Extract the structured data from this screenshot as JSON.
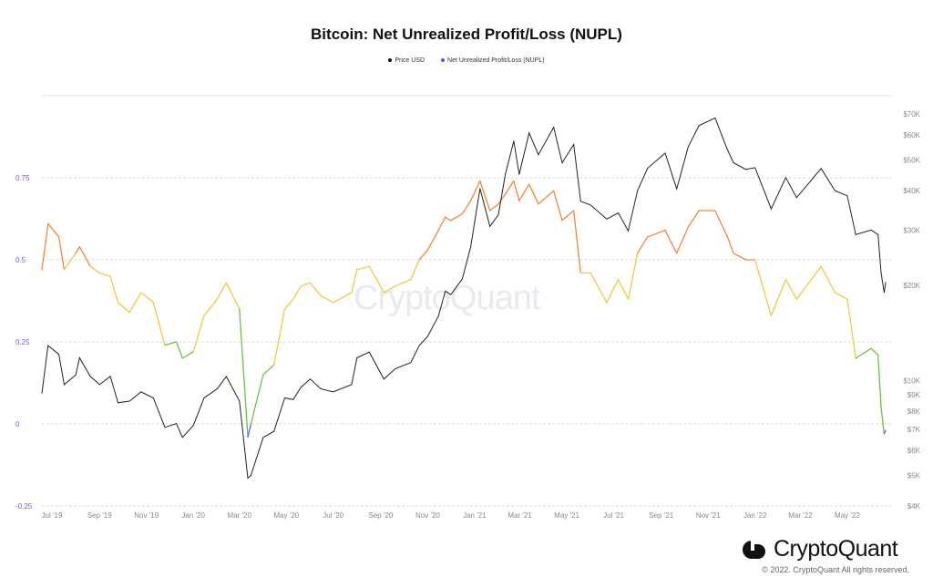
{
  "chart_data": {
    "type": "line",
    "title": "Bitcoin: Net Unrealized Profit/Loss (NUPL)",
    "legend": [
      "Price USD",
      "Net Unrealized Profit/Loss (NUPL)"
    ],
    "legend_placement": "top-center",
    "grid": true,
    "left_axis": {
      "ylim": [
        -0.25,
        1.0
      ],
      "ticks": [
        -0.25,
        0,
        0.25,
        0.5,
        0.75
      ],
      "tick_labels": [
        "-0.25",
        "0",
        "0.25",
        "0.5",
        "0.75"
      ]
    },
    "right_axis": {
      "scale": "log",
      "ylim": [
        4000,
        70000
      ],
      "ticks": [
        4000,
        5000,
        6000,
        7000,
        8000,
        9000,
        10000,
        20000,
        30000,
        40000,
        50000,
        60000,
        70000
      ],
      "tick_labels": [
        "$4K",
        "$5K",
        "$6K",
        "$7K",
        "$8K",
        "$9K",
        "$10K",
        "$20K",
        "$30K",
        "$40K",
        "$50K",
        "$60K",
        "$70K"
      ]
    },
    "x_ticks": [
      "2019-07-01",
      "2019-09-01",
      "2019-11-01",
      "2020-01-01",
      "2020-03-01",
      "2020-05-01",
      "2020-07-01",
      "2020-09-01",
      "2020-11-01",
      "2021-01-01",
      "2021-03-01",
      "2021-05-01",
      "2021-07-01",
      "2021-09-01",
      "2021-11-01",
      "2022-01-01",
      "2022-03-01",
      "2022-05-01"
    ],
    "x_tick_labels": [
      "Jul '19",
      "Sep '19",
      "Nov '19",
      "Jan '20",
      "Mar '20",
      "May '20",
      "Jul '20",
      "Sep '20",
      "Nov '20",
      "Jan '21",
      "Mar '21",
      "May '21",
      "Jul '21",
      "Sep '21",
      "Nov '21",
      "Jan '22",
      "Mar '22",
      "May '22"
    ],
    "xlim": [
      "2019-06-18",
      "2022-06-27"
    ],
    "nupl_colors": {
      "capitulation": "#4a6cf0",
      "hope_fear": "#6cbf45",
      "optimism_anxiety": "#f2c846",
      "belief_denial": "#f0883c",
      "price": "#222222"
    },
    "dates": [
      "2019-06-18",
      "2019-06-26",
      "2019-07-10",
      "2019-07-17",
      "2019-08-01",
      "2019-08-06",
      "2019-08-20",
      "2019-09-01",
      "2019-09-15",
      "2019-09-25",
      "2019-10-10",
      "2019-10-25",
      "2019-11-10",
      "2019-11-25",
      "2019-12-10",
      "2019-12-18",
      "2020-01-01",
      "2020-01-15",
      "2020-02-01",
      "2020-02-13",
      "2020-03-01",
      "2020-03-12",
      "2020-03-16",
      "2020-04-01",
      "2020-04-15",
      "2020-04-29",
      "2020-05-10",
      "2020-05-20",
      "2020-06-01",
      "2020-06-15",
      "2020-07-01",
      "2020-07-25",
      "2020-08-01",
      "2020-08-17",
      "2020-09-05",
      "2020-09-20",
      "2020-10-10",
      "2020-10-21",
      "2020-11-01",
      "2020-11-15",
      "2020-11-24",
      "2020-12-01",
      "2020-12-16",
      "2020-12-27",
      "2021-01-08",
      "2021-01-21",
      "2021-02-01",
      "2021-02-10",
      "2021-02-21",
      "2021-02-28",
      "2021-03-13",
      "2021-03-25",
      "2021-04-14",
      "2021-04-25",
      "2021-05-10",
      "2021-05-19",
      "2021-06-01",
      "2021-06-22",
      "2021-07-07",
      "2021-07-20",
      "2021-08-01",
      "2021-08-14",
      "2021-09-06",
      "2021-09-21",
      "2021-10-06",
      "2021-10-20",
      "2021-11-10",
      "2021-11-26",
      "2021-12-04",
      "2021-12-20",
      "2022-01-01",
      "2022-01-22",
      "2022-02-10",
      "2022-02-24",
      "2022-03-28",
      "2022-04-15",
      "2022-05-01",
      "2022-05-12",
      "2022-06-01",
      "2022-06-10",
      "2022-06-14",
      "2022-06-18",
      "2022-06-20"
    ],
    "series": [
      {
        "name": "Price USD",
        "axis": "right",
        "values": [
          9100,
          12900,
          12100,
          9700,
          10400,
          11800,
          10300,
          9700,
          10300,
          8500,
          8600,
          9200,
          8800,
          7100,
          7300,
          6600,
          7200,
          8800,
          9400,
          10300,
          8600,
          4900,
          5000,
          6600,
          6900,
          8800,
          8700,
          9500,
          10100,
          9400,
          9200,
          9700,
          11800,
          12300,
          10100,
          10900,
          11400,
          12900,
          13800,
          16000,
          19200,
          18700,
          21000,
          26500,
          40600,
          30800,
          33500,
          45000,
          57500,
          45000,
          61000,
          52000,
          63500,
          49000,
          56000,
          37000,
          36000,
          32500,
          34000,
          29800,
          40000,
          47000,
          52600,
          40500,
          55000,
          64300,
          68000,
          54000,
          49000,
          46700,
          47300,
          35000,
          44000,
          38000,
          47000,
          40000,
          38500,
          29000,
          30000,
          29000,
          22000,
          19000,
          20500
        ]
      },
      {
        "name": "Net Unrealized Profit/Loss (NUPL)",
        "axis": "left",
        "values": [
          0.47,
          0.61,
          0.57,
          0.47,
          0.52,
          0.54,
          0.48,
          0.46,
          0.45,
          0.37,
          0.34,
          0.4,
          0.37,
          0.24,
          0.25,
          0.2,
          0.22,
          0.33,
          0.38,
          0.43,
          0.35,
          -0.04,
          0.0,
          0.15,
          0.18,
          0.35,
          0.38,
          0.42,
          0.43,
          0.39,
          0.37,
          0.4,
          0.47,
          0.48,
          0.4,
          0.42,
          0.44,
          0.5,
          0.53,
          0.59,
          0.63,
          0.62,
          0.64,
          0.68,
          0.74,
          0.65,
          0.67,
          0.7,
          0.74,
          0.68,
          0.73,
          0.67,
          0.71,
          0.62,
          0.65,
          0.46,
          0.46,
          0.37,
          0.44,
          0.38,
          0.52,
          0.57,
          0.59,
          0.52,
          0.6,
          0.65,
          0.65,
          0.57,
          0.52,
          0.5,
          0.5,
          0.33,
          0.44,
          0.38,
          0.48,
          0.4,
          0.38,
          0.2,
          0.23,
          0.21,
          0.05,
          -0.03,
          -0.02
        ]
      }
    ]
  },
  "watermark": "CryptoQuant",
  "footer": {
    "logo_text": "CryptoQuant",
    "copyright": "© 2022. CryptoQuant All rights reserved."
  }
}
